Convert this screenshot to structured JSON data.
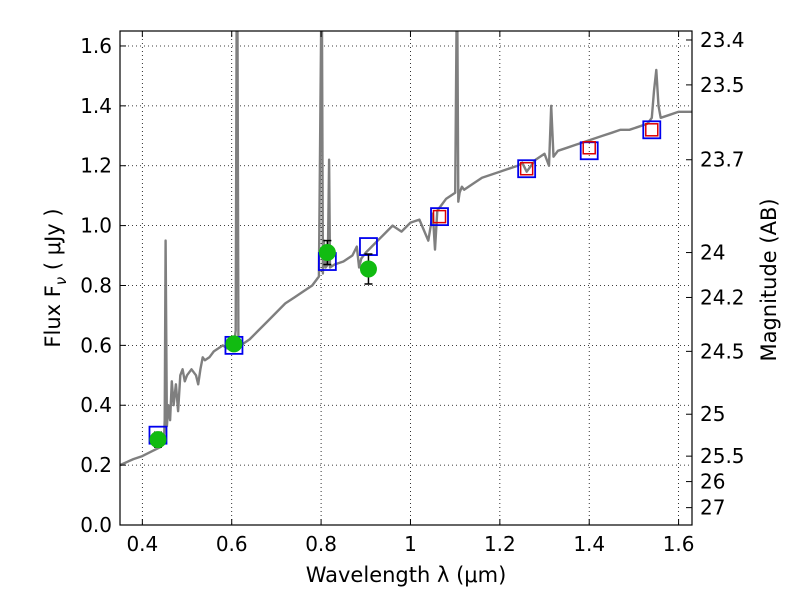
{
  "chart_data": {
    "type": "scatter",
    "xlabel": "Wavelength  λ (μm)",
    "ylabel": "Flux  F",
    "ylabel_subscript": "ν",
    "ylabel_units": " ( μJy )",
    "y2label": "Magnitude (AB)",
    "xlim": [
      0.35,
      1.63
    ],
    "ylim": [
      0.0,
      1.65
    ],
    "grid": true,
    "xticks": [
      0.4,
      0.6,
      0.8,
      1.0,
      1.2,
      1.4,
      1.6
    ],
    "xtick_labels": [
      "0.4",
      "0.6",
      "0.8",
      "1",
      "1.2",
      "1.4",
      "1.6"
    ],
    "yticks": [
      0.0,
      0.2,
      0.4,
      0.6,
      0.8,
      1.0,
      1.2,
      1.4,
      1.6
    ],
    "ytick_labels": [
      "0.0",
      "0.2",
      "0.4",
      "0.6",
      "0.8",
      "1.0",
      "1.2",
      "1.4",
      "1.6"
    ],
    "y2ticks": [
      {
        "flux": 1.62,
        "label": "23.4"
      },
      {
        "flux": 1.47,
        "label": "23.5"
      },
      {
        "flux": 1.22,
        "label": "23.7"
      },
      {
        "flux": 0.91,
        "label": "24"
      },
      {
        "flux": 0.76,
        "label": "24.2"
      },
      {
        "flux": 0.58,
        "label": "24.5"
      },
      {
        "flux": 0.37,
        "label": "25"
      },
      {
        "flux": 0.23,
        "label": "25.5"
      },
      {
        "flux": 0.145,
        "label": "26"
      },
      {
        "flux": 0.058,
        "label": "27"
      }
    ],
    "colors": {
      "model": "#7f7f7f",
      "observed": "#11bb11",
      "model_phot": "#0000ee",
      "model_phot_inner": "#dd0000",
      "errorbar": "#000000"
    },
    "series": [
      {
        "name": "model_spectrum",
        "kind": "line",
        "x": [
          0.35,
          0.38,
          0.4,
          0.42,
          0.44,
          0.446,
          0.448,
          0.45,
          0.452,
          0.455,
          0.458,
          0.462,
          0.466,
          0.47,
          0.475,
          0.48,
          0.485,
          0.49,
          0.495,
          0.5,
          0.51,
          0.52,
          0.525,
          0.53,
          0.535,
          0.54,
          0.55,
          0.56,
          0.57,
          0.58,
          0.59,
          0.6,
          0.605,
          0.609,
          0.611,
          0.613,
          0.615,
          0.62,
          0.64,
          0.66,
          0.68,
          0.7,
          0.72,
          0.74,
          0.76,
          0.78,
          0.795,
          0.8,
          0.802,
          0.804,
          0.806,
          0.81,
          0.815,
          0.818,
          0.82,
          0.83,
          0.85,
          0.87,
          0.88,
          0.885,
          0.89,
          0.9,
          0.92,
          0.94,
          0.96,
          0.98,
          1.0,
          1.02,
          1.04,
          1.05,
          1.055,
          1.06,
          1.07,
          1.08,
          1.09,
          1.1,
          1.103,
          1.105,
          1.107,
          1.11,
          1.115,
          1.12,
          1.14,
          1.16,
          1.18,
          1.2,
          1.22,
          1.24,
          1.25,
          1.26,
          1.28,
          1.3,
          1.31,
          1.315,
          1.32,
          1.33,
          1.35,
          1.37,
          1.39,
          1.41,
          1.43,
          1.45,
          1.47,
          1.49,
          1.51,
          1.53,
          1.54,
          1.545,
          1.55,
          1.555,
          1.56,
          1.58,
          1.6,
          1.63
        ],
        "y": [
          0.2,
          0.22,
          0.23,
          0.245,
          0.26,
          0.29,
          0.27,
          0.35,
          0.95,
          0.33,
          0.4,
          0.35,
          0.48,
          0.4,
          0.47,
          0.38,
          0.5,
          0.52,
          0.48,
          0.5,
          0.52,
          0.5,
          0.47,
          0.52,
          0.56,
          0.55,
          0.56,
          0.58,
          0.59,
          0.6,
          0.59,
          0.61,
          0.6,
          0.65,
          1.65,
          1.65,
          0.62,
          0.6,
          0.62,
          0.65,
          0.68,
          0.71,
          0.74,
          0.76,
          0.78,
          0.8,
          0.83,
          1.65,
          1.65,
          0.84,
          0.95,
          0.86,
          0.87,
          1.22,
          0.86,
          0.87,
          0.88,
          0.9,
          0.93,
          0.86,
          0.89,
          0.91,
          0.94,
          0.97,
          1.0,
          0.98,
          1.01,
          1.02,
          0.95,
          1.04,
          0.92,
          1.05,
          1.07,
          1.09,
          1.1,
          1.11,
          1.65,
          1.65,
          1.08,
          1.11,
          1.13,
          1.12,
          1.14,
          1.16,
          1.17,
          1.18,
          1.19,
          1.2,
          1.21,
          1.18,
          1.22,
          1.24,
          1.2,
          1.4,
          1.23,
          1.25,
          1.26,
          1.27,
          1.28,
          1.29,
          1.3,
          1.31,
          1.32,
          1.32,
          1.33,
          1.34,
          1.36,
          1.45,
          1.52,
          1.4,
          1.36,
          1.37,
          1.38,
          1.38
        ]
      },
      {
        "name": "observed_photometry",
        "kind": "points",
        "x": [
          0.435,
          0.605,
          0.814,
          0.906
        ],
        "y": [
          0.285,
          0.605,
          0.91,
          0.855
        ],
        "yerr": [
          0.025,
          0.02,
          0.04,
          0.05
        ]
      },
      {
        "name": "model_photometry",
        "kind": "open_squares",
        "x": [
          0.435,
          0.605,
          0.814,
          0.906,
          1.065,
          1.26,
          1.4,
          1.54
        ],
        "y": [
          0.3,
          0.6,
          0.88,
          0.93,
          1.03,
          1.19,
          1.25,
          1.32
        ]
      },
      {
        "name": "model_photometry_inner",
        "kind": "open_squares_small",
        "x": [
          1.065,
          1.26,
          1.4,
          1.54
        ],
        "y": [
          1.03,
          1.19,
          1.26,
          1.32
        ]
      }
    ]
  }
}
